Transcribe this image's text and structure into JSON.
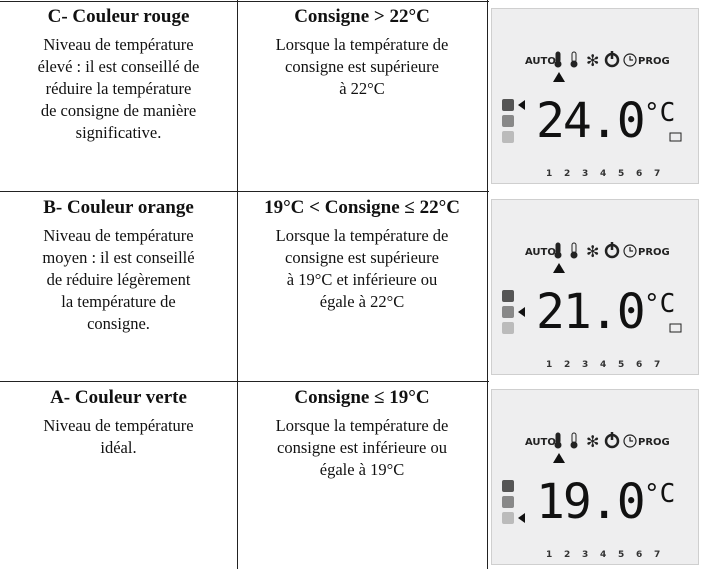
{
  "rows": [
    {
      "label": "C- Couleur rouge",
      "condition": "Consigne > 22°C",
      "description_lines": [
        "Niveau de température",
        "élevé : il est conseillé de",
        "réduire la température",
        "de consigne de manière",
        "significative."
      ],
      "condition_lines": [
        "Lorsque la température de",
        "consigne est supérieure",
        "à 22°C"
      ],
      "display": {
        "mode_left": "AUTO",
        "mode_right": "PROG",
        "temperature": "24.0",
        "unit": "°C",
        "days": [
          "1",
          "2",
          "3",
          "4",
          "5",
          "6",
          "7"
        ]
      }
    },
    {
      "label": "B- Couleur orange",
      "condition": "19°C < Consigne ≤ 22°C",
      "description_lines": [
        "Niveau de température",
        "moyen : il est conseillé",
        "de réduire légèrement",
        "la température de",
        "consigne."
      ],
      "condition_lines": [
        "Lorsque la température de",
        "consigne est supérieure",
        "à 19°C et inférieure ou",
        "égale à 22°C"
      ],
      "display": {
        "mode_left": "AUTO",
        "mode_right": "PROG",
        "temperature": "21.0",
        "unit": "°C",
        "days": [
          "1",
          "2",
          "3",
          "4",
          "5",
          "6",
          "7"
        ]
      }
    },
    {
      "label": "A- Couleur verte",
      "condition": "Consigne ≤ 19°C",
      "description_lines": [
        "Niveau de température",
        "idéal."
      ],
      "condition_lines": [
        "Lorsque la température de",
        "consigne est inférieure ou",
        "égale à 19°C"
      ],
      "display": {
        "mode_left": "AUTO",
        "mode_right": "PROG",
        "temperature": "19.0",
        "unit": "°C",
        "days": [
          "1",
          "2",
          "3",
          "4",
          "5",
          "6",
          "7"
        ]
      }
    }
  ]
}
